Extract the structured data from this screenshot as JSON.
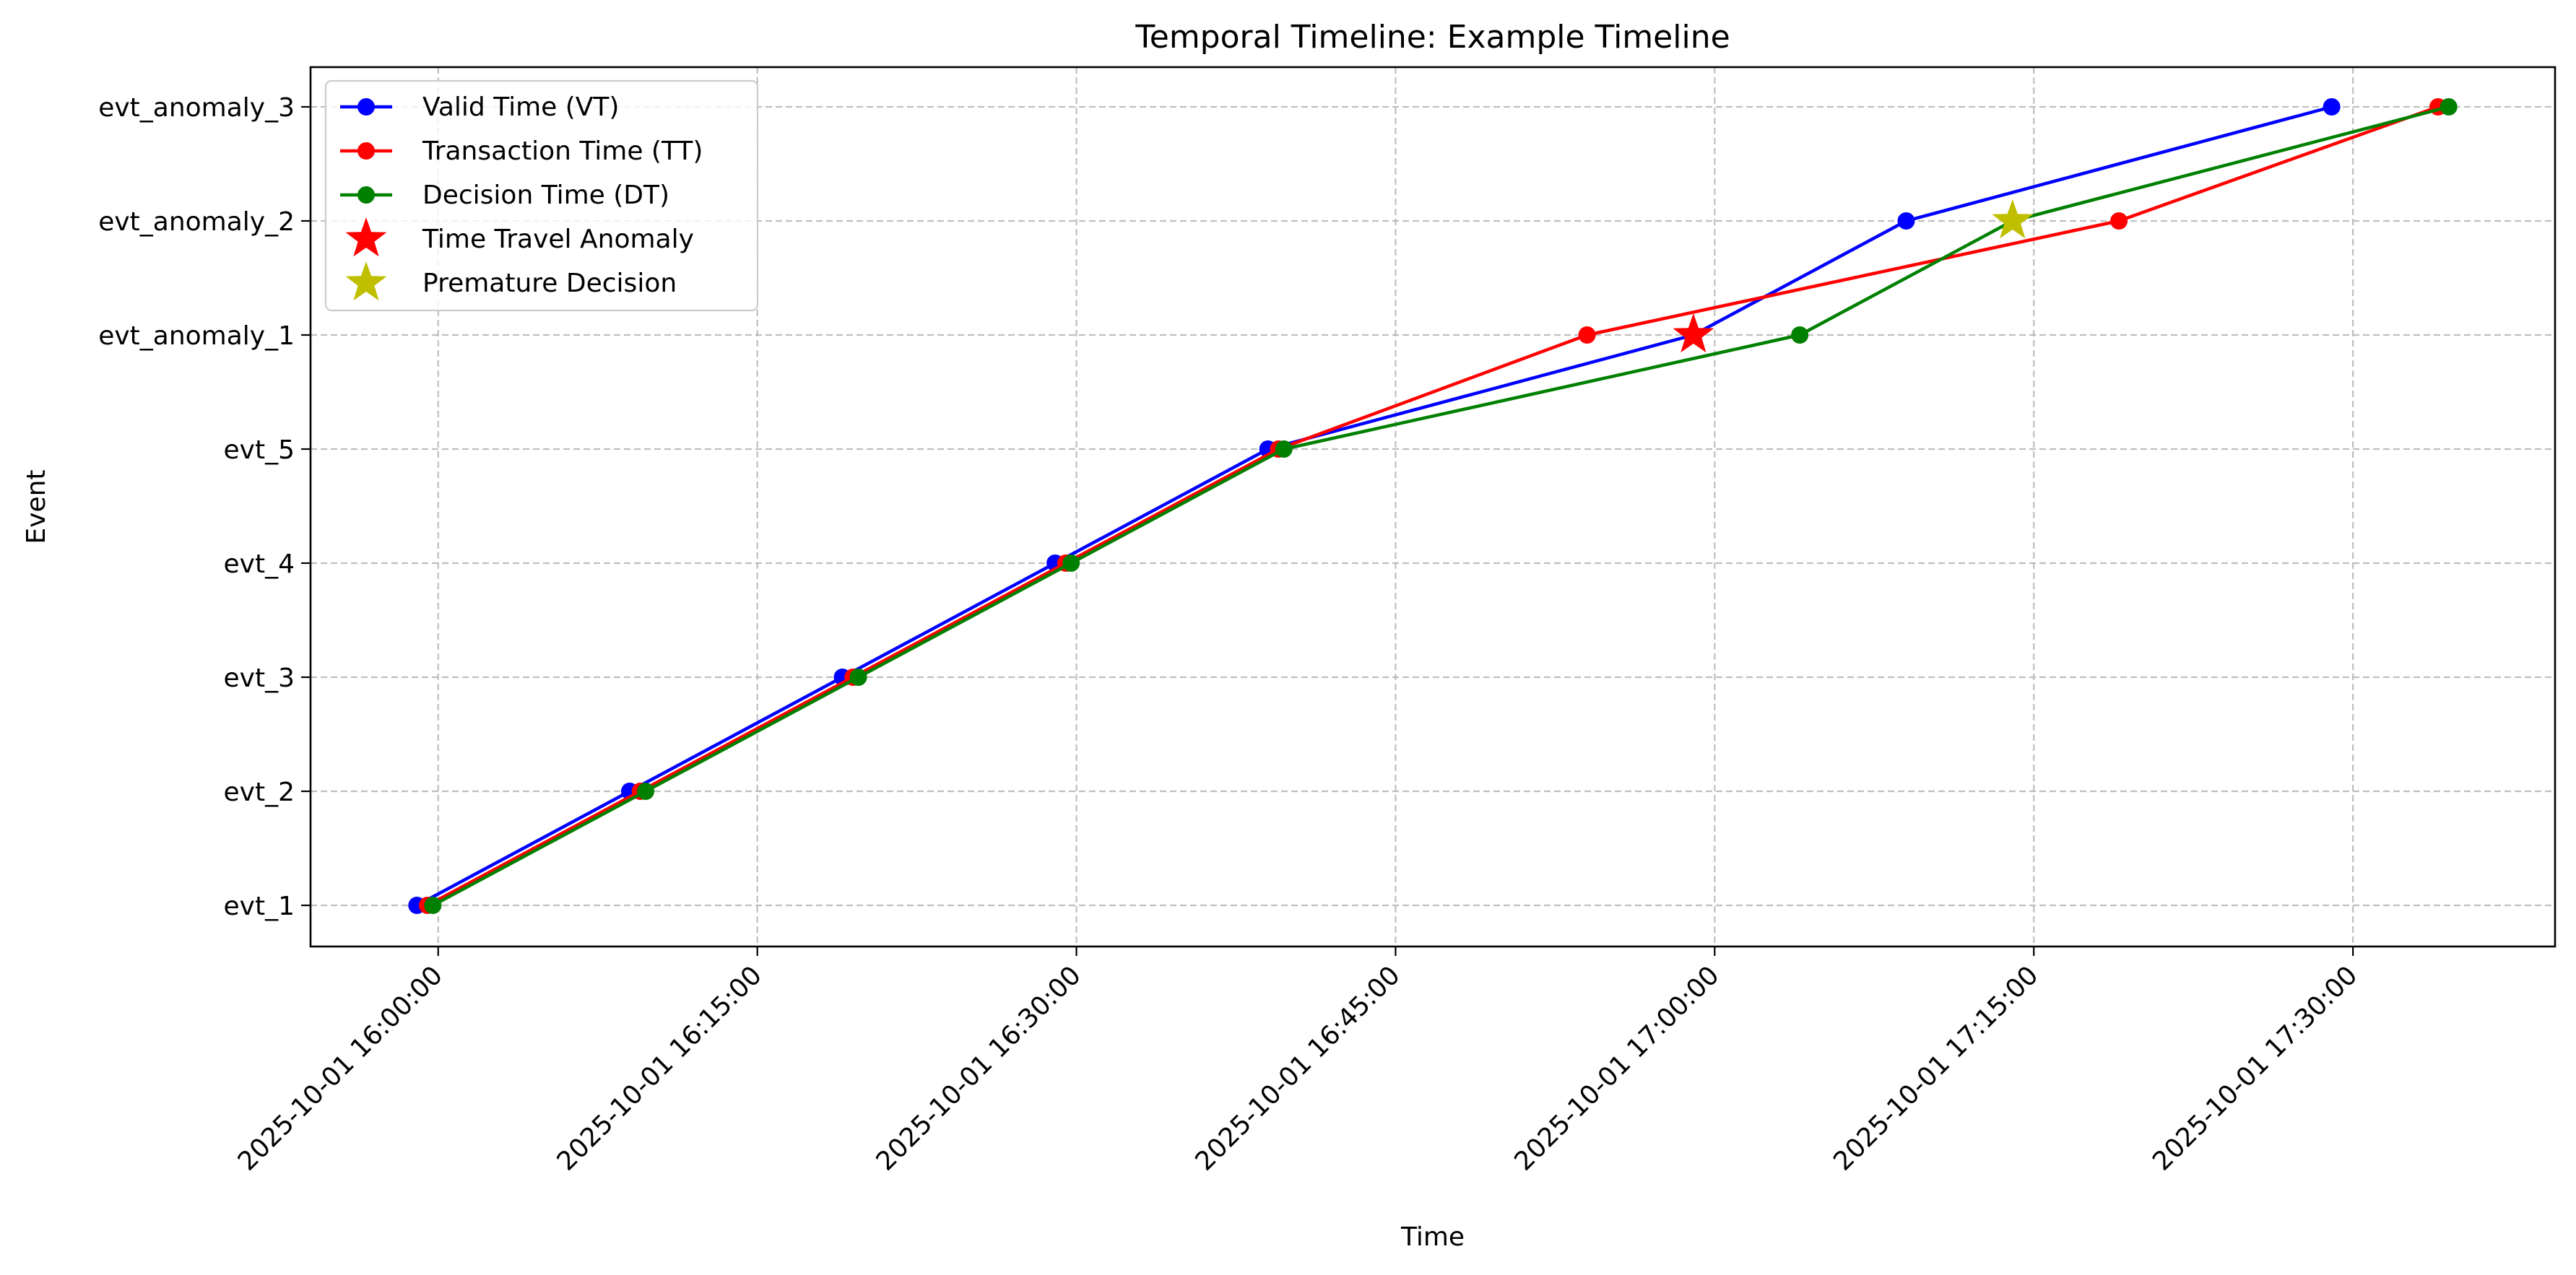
{
  "chart_data": {
    "type": "line",
    "title": "Temporal Timeline: Example Timeline",
    "xlabel": "Time",
    "ylabel": "Event",
    "categories": [
      "evt_1",
      "evt_2",
      "evt_3",
      "evt_4",
      "evt_5",
      "evt_anomaly_1",
      "evt_anomaly_2",
      "evt_anomaly_3"
    ],
    "x_ticks": [
      "2025-10-01 16:00:00",
      "2025-10-01 16:15:00",
      "2025-10-01 16:30:00",
      "2025-10-01 16:45:00",
      "2025-10-01 17:00:00",
      "2025-10-01 17:15:00",
      "2025-10-01 17:30:00"
    ],
    "xlim": [
      "2025-10-01 15:54:00",
      "2025-10-01 17:39:30"
    ],
    "grid": true,
    "legend_position": "top-left",
    "series": [
      {
        "name": "Valid Time (VT)",
        "color": "#0000ff",
        "marker": "circle",
        "x": [
          "2025-10-01 15:59:00",
          "2025-10-01 16:09:00",
          "2025-10-01 16:19:00",
          "2025-10-01 16:29:00",
          "2025-10-01 16:39:00",
          "2025-10-01 16:59:00",
          "2025-10-01 17:09:00",
          "2025-10-01 17:29:00"
        ],
        "y": [
          "evt_1",
          "evt_2",
          "evt_3",
          "evt_4",
          "evt_5",
          "evt_anomaly_1",
          "evt_anomaly_2",
          "evt_anomaly_3"
        ]
      },
      {
        "name": "Transaction Time (TT)",
        "color": "#ff0000",
        "marker": "circle",
        "x": [
          "2025-10-01 15:59:30",
          "2025-10-01 16:09:30",
          "2025-10-01 16:19:30",
          "2025-10-01 16:29:30",
          "2025-10-01 16:39:30",
          "2025-10-01 16:54:00",
          "2025-10-01 17:19:00",
          "2025-10-01 17:34:00"
        ],
        "y": [
          "evt_1",
          "evt_2",
          "evt_3",
          "evt_4",
          "evt_5",
          "evt_anomaly_1",
          "evt_anomaly_2",
          "evt_anomaly_3"
        ]
      },
      {
        "name": "Decision Time (DT)",
        "color": "#008000",
        "marker": "circle",
        "x": [
          "2025-10-01 15:59:45",
          "2025-10-01 16:09:45",
          "2025-10-01 16:19:45",
          "2025-10-01 16:29:45",
          "2025-10-01 16:39:45",
          "2025-10-01 17:04:00",
          "2025-10-01 17:14:00",
          "2025-10-01 17:34:30"
        ],
        "y": [
          "evt_1",
          "evt_2",
          "evt_3",
          "evt_4",
          "evt_5",
          "evt_anomaly_1",
          "evt_anomaly_2",
          "evt_anomaly_3"
        ]
      },
      {
        "name": "Time Travel Anomaly",
        "color": "#ff0000",
        "marker": "star",
        "x": [
          "2025-10-01 16:59:00"
        ],
        "y": [
          "evt_anomaly_1"
        ]
      },
      {
        "name": "Premature Decision",
        "color": "#bfbf00",
        "marker": "star",
        "x": [
          "2025-10-01 17:14:00"
        ],
        "y": [
          "evt_anomaly_2"
        ]
      }
    ]
  }
}
